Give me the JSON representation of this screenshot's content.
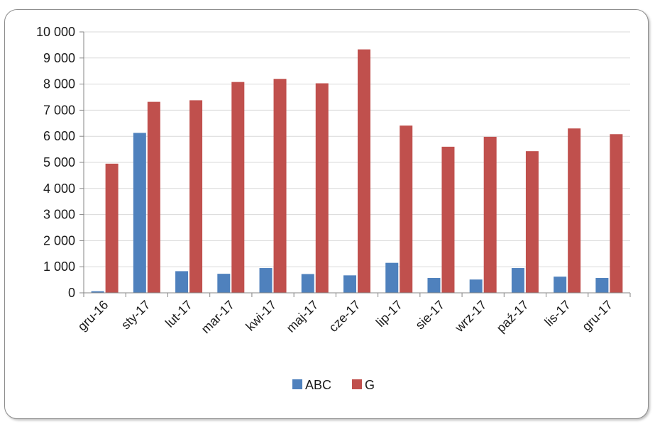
{
  "chart_data": {
    "type": "bar",
    "categories": [
      "gru-16",
      "sty-17",
      "lut-17",
      "mar-17",
      "kwi-17",
      "maj-17",
      "cze-17",
      "lip-17",
      "sie-17",
      "wrz-17",
      "paź-17",
      "lis-17",
      "gru-17"
    ],
    "series": [
      {
        "name": "ABC",
        "color": "#4f81bd",
        "values": [
          60,
          6130,
          830,
          730,
          950,
          720,
          670,
          1150,
          570,
          510,
          950,
          620,
          570
        ]
      },
      {
        "name": "G",
        "color": "#c0504d",
        "values": [
          4950,
          7320,
          7380,
          8080,
          8200,
          8030,
          9330,
          6410,
          5600,
          5980,
          5430,
          6300,
          6080
        ]
      }
    ],
    "yticks": [
      "0",
      "1 000",
      "2 000",
      "3 000",
      "4 000",
      "5 000",
      "6 000",
      "7 000",
      "8 000",
      "9 000",
      "10 000"
    ],
    "ylim": [
      0,
      10000
    ],
    "grid": true,
    "legend": "bottom-center",
    "title": "",
    "xlabel": "",
    "ylabel": ""
  }
}
